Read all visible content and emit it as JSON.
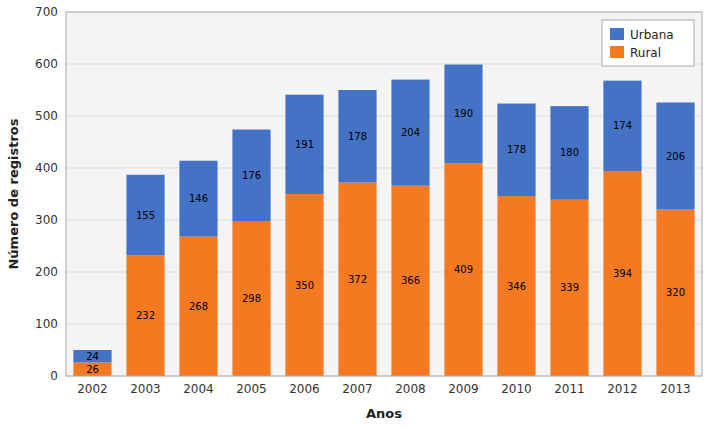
{
  "chart_data": {
    "type": "bar",
    "stacked": true,
    "categories": [
      "2002",
      "2003",
      "2004",
      "2005",
      "2006",
      "2007",
      "2008",
      "2009",
      "2010",
      "2011",
      "2012",
      "2013"
    ],
    "series": [
      {
        "name": "Rural",
        "color": "#F47920",
        "values": [
          26,
          232,
          268,
          298,
          350,
          372,
          366,
          409,
          346,
          339,
          394,
          320
        ]
      },
      {
        "name": "Urbana",
        "color": "#4472C4",
        "values": [
          24,
          155,
          146,
          176,
          191,
          178,
          204,
          190,
          178,
          180,
          174,
          206
        ]
      }
    ],
    "xlabel": "Anos",
    "ylabel": "Número de registros",
    "ylim": [
      0,
      700
    ],
    "yticks": [
      0,
      100,
      200,
      300,
      400,
      500,
      600,
      700
    ],
    "grid": true,
    "legend": "upper right",
    "data_labels": true
  }
}
